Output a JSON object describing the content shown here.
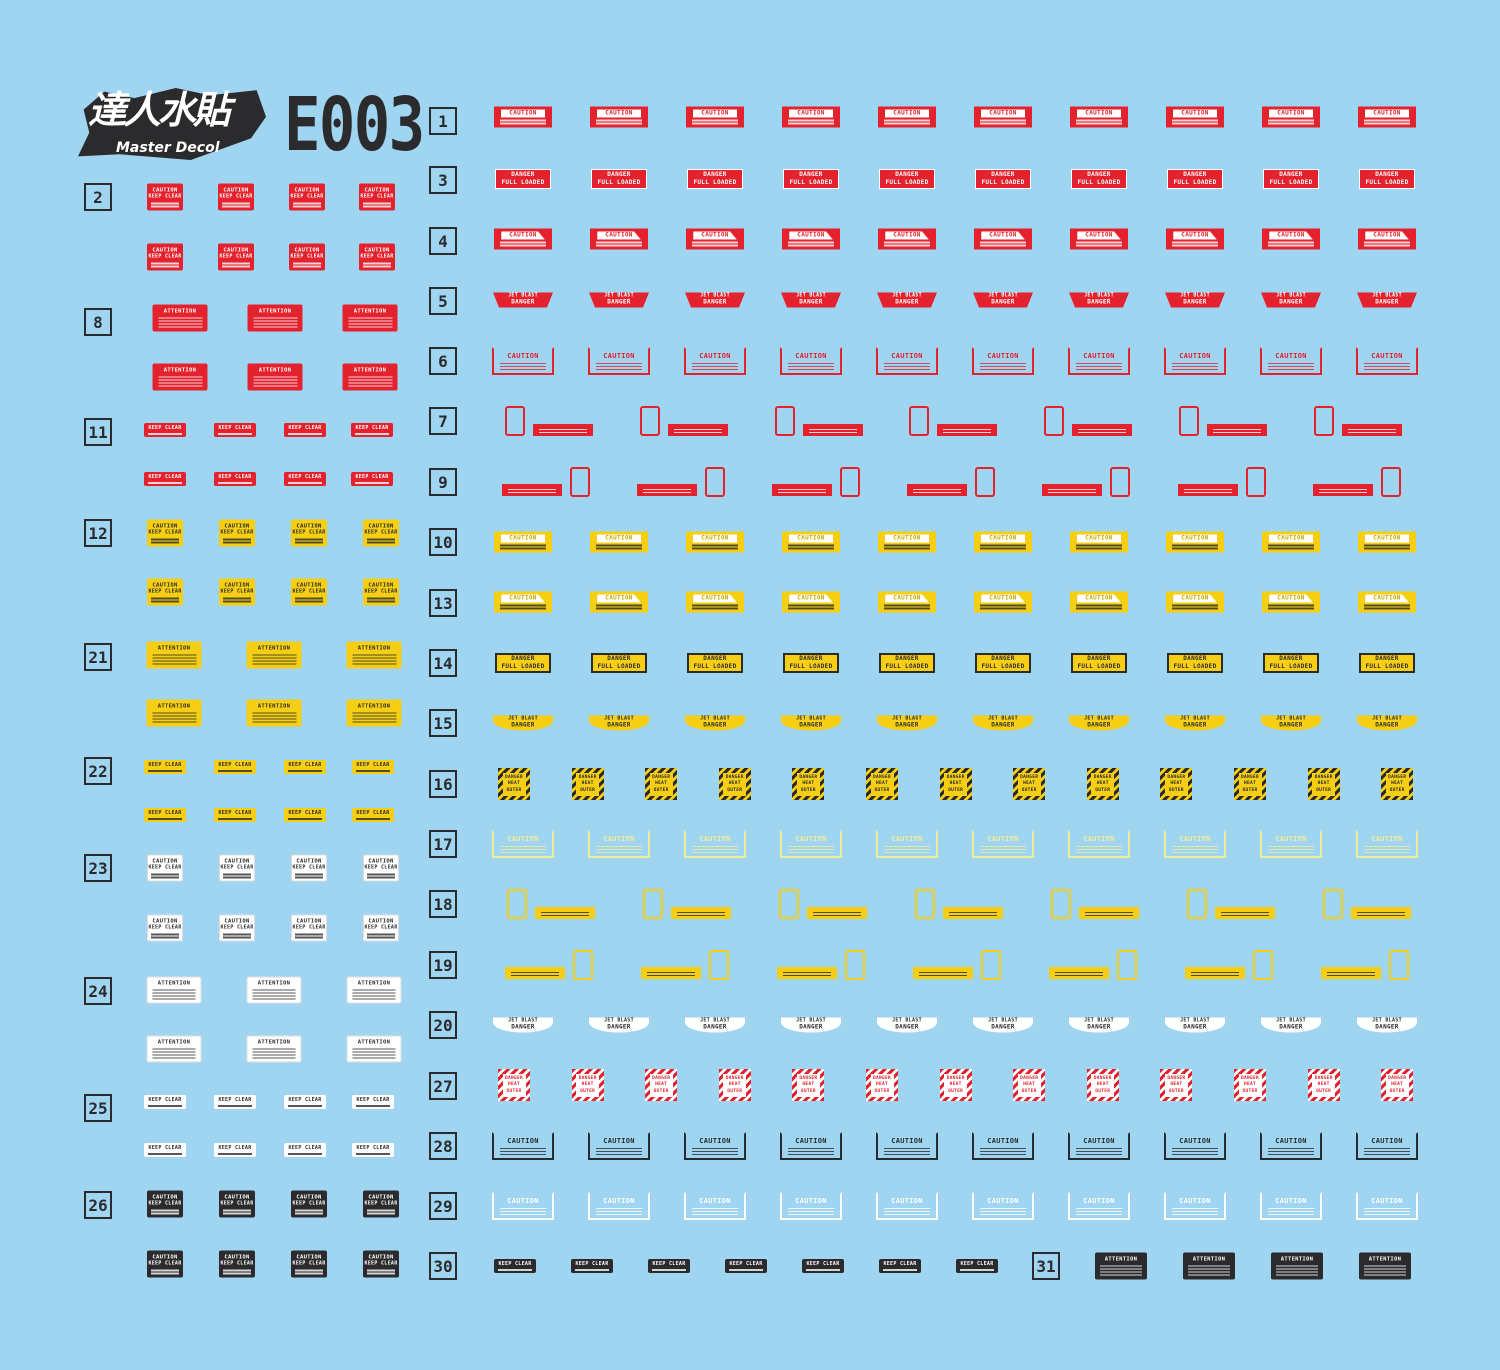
{
  "logo": {
    "chinese": "達人水貼",
    "english": "Master Decol"
  },
  "sheet_code": "E003",
  "colors": {
    "background": "#9fd5f1",
    "red": "#e3222d",
    "yellow": "#f6cf14",
    "white": "#ffffff",
    "black": "#2b2b2e",
    "pale_yellow": "#f3ec9a"
  },
  "texts": {
    "caution": "CAUTION",
    "keep_clear": "KEEP CLEAR",
    "danger": "DANGER",
    "full_loaded": "FULL LOADED",
    "jet_blast": "JET BLAST",
    "attention": "ATTENTION",
    "heat": "HEAT",
    "outer": "OUTER"
  },
  "groups": [
    {
      "label": "1",
      "style": "caution-bar",
      "color": "red"
    },
    {
      "label": "2",
      "style": "caution-square",
      "color": "red"
    },
    {
      "label": "3",
      "style": "danger-full-loaded",
      "color": "red"
    },
    {
      "label": "4",
      "style": "caution-tab",
      "color": "red"
    },
    {
      "label": "5",
      "style": "jet-blast",
      "color": "red"
    },
    {
      "label": "6",
      "style": "caution-frame",
      "color": "red"
    },
    {
      "label": "7",
      "style": "frame-bar",
      "color": "red"
    },
    {
      "label": "8",
      "style": "attention-square",
      "color": "red"
    },
    {
      "label": "9",
      "style": "bar-frame",
      "color": "red"
    },
    {
      "label": "10",
      "style": "caution-bar",
      "color": "yellow"
    },
    {
      "label": "11",
      "style": "keep-clear",
      "color": "red"
    },
    {
      "label": "12",
      "style": "caution-square",
      "color": "yellow"
    },
    {
      "label": "13",
      "style": "caution-tab",
      "color": "yellow"
    },
    {
      "label": "14",
      "style": "danger-full-loaded",
      "color": "yellow"
    },
    {
      "label": "15",
      "style": "jet-blast",
      "color": "yellow"
    },
    {
      "label": "16",
      "style": "hazard",
      "color": "yellow"
    },
    {
      "label": "17",
      "style": "caution-frame",
      "color": "pale_yellow"
    },
    {
      "label": "18",
      "style": "frame-bar",
      "color": "yellow"
    },
    {
      "label": "19",
      "style": "bar-frame",
      "color": "yellow"
    },
    {
      "label": "20",
      "style": "jet-blast",
      "color": "white"
    },
    {
      "label": "21",
      "style": "attention-square",
      "color": "yellow"
    },
    {
      "label": "22",
      "style": "keep-clear",
      "color": "yellow"
    },
    {
      "label": "23",
      "style": "caution-square",
      "color": "white"
    },
    {
      "label": "24",
      "style": "attention-square",
      "color": "white"
    },
    {
      "label": "25",
      "style": "keep-clear",
      "color": "white"
    },
    {
      "label": "26",
      "style": "caution-square",
      "color": "black"
    },
    {
      "label": "27",
      "style": "hazard",
      "color": "red"
    },
    {
      "label": "28",
      "style": "caution-frame",
      "color": "black"
    },
    {
      "label": "29",
      "style": "caution-frame",
      "color": "white"
    },
    {
      "label": "30",
      "style": "keep-clear",
      "color": "black"
    },
    {
      "label": "31",
      "style": "attention-square",
      "color": "black"
    }
  ]
}
